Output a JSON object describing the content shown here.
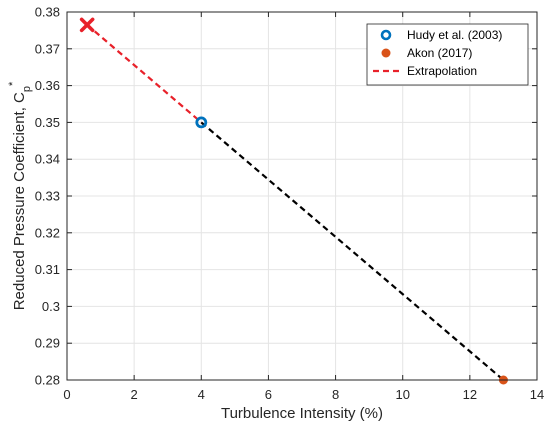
{
  "chart_data": {
    "type": "scatter",
    "xlabel": "Turbulence Intensity (%)",
    "ylabel_main": "Reduced Pressure Coefficient, C",
    "ylabel_sub": "p",
    "ylabel_sup": "*",
    "xlim": [
      0,
      14
    ],
    "ylim": [
      0.28,
      0.38
    ],
    "xticks": [
      0,
      2,
      4,
      6,
      8,
      10,
      12,
      14
    ],
    "xtick_labels": [
      "0",
      "2",
      "4",
      "6",
      "8",
      "10",
      "12",
      "14"
    ],
    "yticks": [
      0.28,
      0.29,
      0.3,
      0.31,
      0.32,
      0.33,
      0.34,
      0.35,
      0.36,
      0.37,
      0.38
    ],
    "ytick_labels": [
      "0.28",
      "0.29",
      "0.3",
      "0.31",
      "0.32",
      "0.33",
      "0.34",
      "0.35",
      "0.36",
      "0.37",
      "0.38"
    ],
    "grid": true,
    "legend_position": "top-right",
    "series": [
      {
        "name": "Hudy et al. (2003)",
        "marker": "open-circle",
        "color": "#0072BD",
        "points": [
          [
            4,
            0.35
          ]
        ]
      },
      {
        "name": "Akon (2017)",
        "marker": "filled-circle",
        "color": "#D95319",
        "points": [
          [
            13,
            0.28
          ]
        ]
      },
      {
        "name": "Extrapolation",
        "style": "dashed-line",
        "color": "#E8212A",
        "points": [
          [
            0.6,
            0.3765
          ],
          [
            4,
            0.35
          ]
        ]
      }
    ],
    "fit_line": {
      "style": "dashed-line",
      "color": "#000000",
      "points": [
        [
          4,
          0.35
        ],
        [
          13,
          0.28
        ]
      ]
    },
    "extrapolated_point": {
      "marker": "x",
      "color": "#E8212A",
      "point": [
        0.6,
        0.3765
      ]
    }
  }
}
